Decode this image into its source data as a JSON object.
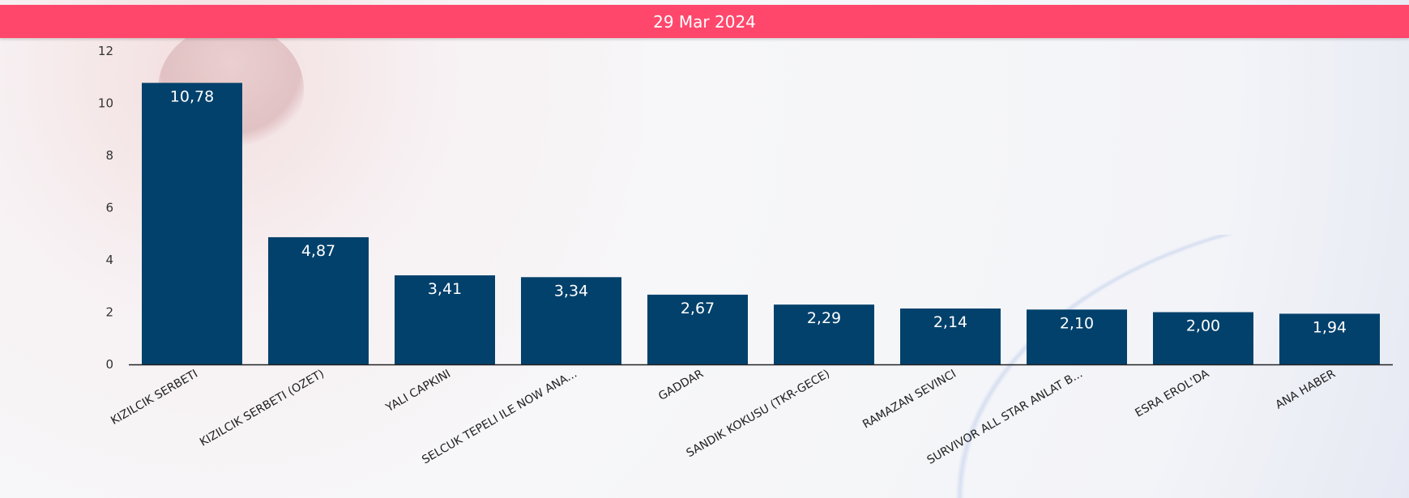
{
  "header": {
    "date": "29 Mar 2024"
  },
  "colors": {
    "banner": "#ff476c",
    "bar": "#02416c"
  },
  "chart_data": {
    "type": "bar",
    "categories": [
      "KIZILCIK SERBETI",
      "KIZILCIK SERBETI (OZET)",
      "YALI CAPKINI",
      "SELCUK TEPELI ILE NOW ANA...",
      "GADDAR",
      "SANDIK KOKUSU (TKR-GECE)",
      "RAMAZAN SEVINCI",
      "SURVIVOR ALL STAR ANLAT B...",
      "ESRA EROL'DA",
      "ANA HABER"
    ],
    "values": [
      10.78,
      4.87,
      3.41,
      3.34,
      2.67,
      2.29,
      2.14,
      2.1,
      2.0,
      1.94
    ],
    "value_labels": [
      "10,78",
      "4,87",
      "3,41",
      "3,34",
      "2,67",
      "2,29",
      "2,14",
      "2,10",
      "2,00",
      "1,94"
    ],
    "ylim": [
      0,
      12
    ],
    "yticks": [
      "0",
      "2",
      "4",
      "6",
      "8",
      "10",
      "12"
    ],
    "grid": false,
    "data_labels": "inside-top"
  }
}
